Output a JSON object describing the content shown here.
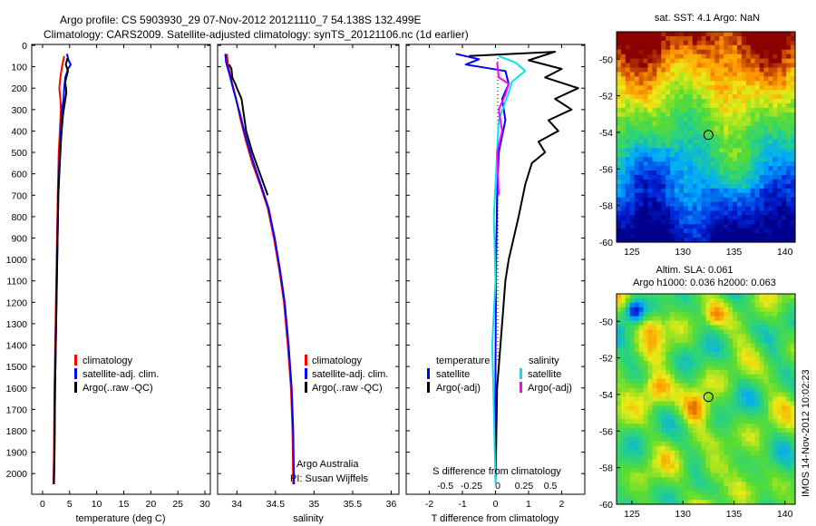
{
  "header": {
    "line1": "Argo profile: CS 5903930_29 07-Nov-2012 20121110_7 54.138S 132.499E",
    "line2": "Climatology: CARS2009. Satellite-adjusted climatology: synTS_20121106.nc (1d earlier)"
  },
  "stamp": "IMOS 14-Nov-2012 10:02:23",
  "colors": {
    "climatology": "#ff0000",
    "satellite": "#0000ff",
    "argo": "#000000",
    "sal_satellite": "#00e5ee",
    "sal_argo": "#ff00ff"
  },
  "chart_data": [
    {
      "type": "line",
      "id": "temperature",
      "xlabel": "temperature (deg C)",
      "ylabel": "",
      "xlim": [
        -2,
        31
      ],
      "ylim": [
        2070,
        0
      ],
      "xticks": [
        0,
        5,
        10,
        15,
        20,
        25,
        30
      ],
      "xtick_labels": [
        "0",
        "5",
        "10",
        "15",
        "20",
        "25",
        "30"
      ],
      "yticks": [
        0,
        100,
        200,
        300,
        400,
        500,
        600,
        700,
        800,
        900,
        1000,
        1100,
        1200,
        1300,
        1400,
        1500,
        1600,
        1700,
        1800,
        1900,
        2000
      ],
      "ytick_labels": [
        "0",
        "100",
        "200",
        "300",
        "400",
        "500",
        "600",
        "700",
        "800",
        "900",
        "1000",
        "1100",
        "1200",
        "1300",
        "1400",
        "1500",
        "1600",
        "1700",
        "1800",
        "1900",
        "2000"
      ],
      "legend": [
        "climatology",
        "satellite-adj. clim.",
        "Argo(..raw -QC)"
      ],
      "series": [
        {
          "name": "climatology",
          "color": "#ff0000",
          "points": [
            [
              4.0,
              50
            ],
            [
              3.6,
              100
            ],
            [
              3.3,
              150
            ],
            [
              3.1,
              200
            ],
            [
              3.3,
              250
            ],
            [
              3.4,
              300
            ],
            [
              3.2,
              400
            ],
            [
              3.0,
              500
            ],
            [
              2.8,
              700
            ],
            [
              2.6,
              1000
            ],
            [
              2.4,
              1300
            ],
            [
              2.2,
              1600
            ],
            [
              2.1,
              1900
            ],
            [
              2.0,
              2050
            ]
          ]
        },
        {
          "name": "satellite-adj. clim.",
          "color": "#0000ff",
          "points": [
            [
              4.5,
              40
            ],
            [
              4.8,
              70
            ],
            [
              5.2,
              90
            ],
            [
              4.7,
              110
            ],
            [
              4.2,
              150
            ],
            [
              4.0,
              200
            ],
            [
              3.9,
              250
            ],
            [
              3.6,
              300
            ],
            [
              3.4,
              400
            ],
            [
              3.2,
              500
            ],
            [
              2.9,
              700
            ],
            [
              2.7,
              1000
            ],
            [
              2.5,
              1300
            ],
            [
              2.3,
              1600
            ],
            [
              2.2,
              1900
            ],
            [
              2.1,
              2050
            ]
          ]
        },
        {
          "name": "Argo(..raw -QC)",
          "color": "#000000",
          "points": [
            [
              4.6,
              60
            ],
            [
              4.3,
              90
            ],
            [
              4.7,
              120
            ],
            [
              4.2,
              170
            ],
            [
              4.4,
              220
            ],
            [
              4.1,
              270
            ],
            [
              3.8,
              320
            ],
            [
              3.6,
              380
            ],
            [
              3.4,
              450
            ],
            [
              3.2,
              550
            ],
            [
              2.9,
              700
            ],
            [
              2.7,
              1000
            ],
            [
              2.5,
              1300
            ],
            [
              2.3,
              1600
            ],
            [
              2.2,
              1900
            ],
            [
              2.1,
              2050
            ]
          ]
        }
      ]
    },
    {
      "type": "line",
      "id": "salinity",
      "xlabel": "salinity",
      "xlim": [
        33.75,
        36.1
      ],
      "ylim": [
        2070,
        0
      ],
      "xticks": [
        34,
        34.5,
        35,
        35.5,
        36
      ],
      "xtick_labels": [
        "34",
        "34.5",
        "35",
        "35.5",
        "36"
      ],
      "legend": [
        "climatology",
        "satellite-adj. clim.",
        "Argo(..raw -QC)"
      ],
      "annotation": [
        "Argo Australia",
        "PI: Susan Wijffels"
      ],
      "series": [
        {
          "name": "climatology",
          "color": "#ff0000",
          "points": [
            [
              33.87,
              40
            ],
            [
              33.89,
              100
            ],
            [
              33.92,
              150
            ],
            [
              33.99,
              250
            ],
            [
              34.05,
              350
            ],
            [
              34.12,
              450
            ],
            [
              34.2,
              550
            ],
            [
              34.3,
              650
            ],
            [
              34.4,
              760
            ],
            [
              34.48,
              900
            ],
            [
              34.55,
              1050
            ],
            [
              34.61,
              1200
            ],
            [
              34.66,
              1400
            ],
            [
              34.7,
              1600
            ],
            [
              34.72,
              1800
            ],
            [
              34.73,
              2050
            ]
          ]
        },
        {
          "name": "satellite-adj. clim.",
          "color": "#0000ff",
          "points": [
            [
              33.85,
              40
            ],
            [
              33.86,
              80
            ],
            [
              33.9,
              130
            ],
            [
              33.95,
              200
            ],
            [
              34.04,
              320
            ],
            [
              34.11,
              420
            ],
            [
              34.19,
              520
            ],
            [
              34.3,
              640
            ],
            [
              34.41,
              760
            ],
            [
              34.49,
              900
            ],
            [
              34.56,
              1050
            ],
            [
              34.62,
              1200
            ],
            [
              34.67,
              1400
            ],
            [
              34.71,
              1600
            ],
            [
              34.73,
              1800
            ],
            [
              34.74,
              2050
            ]
          ]
        },
        {
          "name": "Argo(..raw -QC)",
          "color": "#000000",
          "points": [
            [
              33.9,
              90
            ],
            [
              33.93,
              110
            ],
            [
              33.94,
              150
            ],
            [
              33.98,
              180
            ],
            [
              34.0,
              200
            ],
            [
              34.06,
              250
            ],
            [
              34.08,
              300
            ],
            [
              34.12,
              400
            ],
            [
              34.2,
              500
            ],
            [
              34.3,
              600
            ],
            [
              34.4,
              700
            ]
          ]
        }
      ]
    },
    {
      "type": "line",
      "id": "differences",
      "xlabel": "T difference from climatology",
      "top_label": "S difference from climatology",
      "xlim": [
        -2.7,
        2.7
      ],
      "ylim": [
        2070,
        0
      ],
      "xticks": [
        -2,
        -1,
        0,
        1,
        2
      ],
      "xtick_labels": [
        "-2",
        "-1",
        "0",
        "1",
        "2"
      ],
      "sticks": [
        -0.5,
        -0.25,
        0,
        0.25,
        0.5
      ],
      "stick_labels": [
        "-0.5",
        "-0.25",
        "0",
        "0.25",
        "0.5"
      ],
      "legend_headers": [
        "temperature",
        "salinity"
      ],
      "legend": [
        "satellite",
        "Argo(-adj)",
        "satellite",
        "Argo(-adj)"
      ],
      "series": [
        {
          "name": "satellite",
          "color": "#0000ff",
          "points": [
            [
              -1.2,
              40
            ],
            [
              -0.5,
              65
            ],
            [
              -0.9,
              90
            ],
            [
              0.3,
              120
            ],
            [
              0.4,
              180
            ],
            [
              0.2,
              250
            ],
            [
              0.3,
              350
            ],
            [
              0.1,
              500
            ],
            [
              0.05,
              700
            ],
            [
              0.02,
              1000
            ],
            [
              0.0,
              1500
            ],
            [
              0.0,
              2050
            ]
          ]
        },
        {
          "name": "Argo(-adj)",
          "color": "#000000",
          "points": [
            [
              -0.8,
              50
            ],
            [
              1.8,
              30
            ],
            [
              1.0,
              70
            ],
            [
              2.0,
              110
            ],
            [
              1.5,
              150
            ],
            [
              2.5,
              200
            ],
            [
              1.8,
              250
            ],
            [
              2.3,
              300
            ],
            [
              1.6,
              350
            ],
            [
              1.9,
              400
            ],
            [
              1.3,
              450
            ],
            [
              1.5,
              500
            ],
            [
              1.1,
              550
            ],
            [
              0.9,
              650
            ],
            [
              0.7,
              800
            ],
            [
              0.4,
              1000
            ],
            [
              0.3,
              1100
            ],
            [
              0.2,
              1300
            ],
            [
              0.05,
              1600
            ],
            [
              0.0,
              2050
            ]
          ]
        },
        {
          "name": "salinity satellite",
          "color": "#00e5ee",
          "points": [
            [
              0.1,
              50
            ],
            [
              0.6,
              80
            ],
            [
              0.9,
              120
            ],
            [
              0.5,
              170
            ],
            [
              0.4,
              220
            ],
            [
              0.1,
              350
            ],
            [
              0.05,
              500
            ],
            [
              -0.05,
              800
            ],
            [
              0.0,
              1100
            ],
            [
              -0.1,
              1400
            ],
            [
              -0.05,
              1700
            ],
            [
              0.0,
              2050
            ]
          ]
        },
        {
          "name": "salinity Argo(-adj)",
          "color": "#ff00ff",
          "points": [
            [
              0.05,
              80
            ],
            [
              0.1,
              150
            ],
            [
              0.4,
              180
            ],
            [
              0.3,
              230
            ],
            [
              0.1,
              300
            ],
            [
              0.2,
              400
            ],
            [
              0.05,
              500
            ],
            [
              0.1,
              700
            ]
          ]
        }
      ]
    },
    {
      "type": "heatmap",
      "id": "sst",
      "title": "sat. SST: 4.1  Argo: NaN",
      "xlim": [
        123.5,
        141
      ],
      "ylim": [
        -60,
        -48.5
      ],
      "xticks": [
        125,
        130,
        135,
        140
      ],
      "xtick_labels": [
        "125",
        "130",
        "135",
        "140"
      ],
      "yticks": [
        -50,
        -52,
        -54,
        -56,
        -58,
        -60
      ],
      "ytick_labels": [
        "-50",
        "-52",
        "-54",
        "-56",
        "-58",
        "-60"
      ],
      "marker": [
        132.5,
        -54.14
      ]
    },
    {
      "type": "heatmap",
      "id": "sla",
      "title": [
        "Altim. SLA: 0.061",
        "Argo h1000: 0.036 h2000: 0.063"
      ],
      "xlim": [
        123.5,
        141
      ],
      "ylim": [
        -60,
        -48.5
      ],
      "xticks": [
        125,
        130,
        135,
        140
      ],
      "xtick_labels": [
        "125",
        "130",
        "135",
        "140"
      ],
      "yticks": [
        -50,
        -52,
        -54,
        -56,
        -58,
        -60
      ],
      "ytick_labels": [
        "-50",
        "-52",
        "-54",
        "-56",
        "-58",
        "-60"
      ],
      "marker": [
        132.5,
        -54.14
      ]
    }
  ]
}
